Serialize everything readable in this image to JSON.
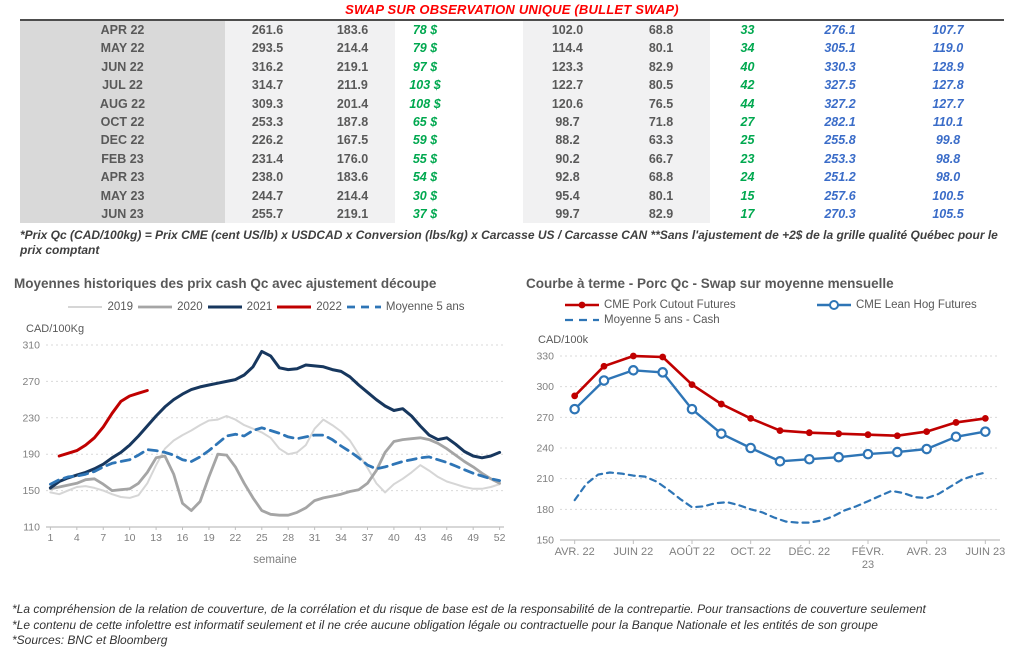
{
  "title": "SWAP SUR OBSERVATION UNIQUE (BULLET SWAP)",
  "table": {
    "rows": [
      [
        "APR 22",
        "261.6",
        "183.6",
        "78 $",
        "102.0",
        "68.8",
        "33",
        "276.1",
        "107.7"
      ],
      [
        "MAY 22",
        "293.5",
        "214.4",
        "79 $",
        "114.4",
        "80.1",
        "34",
        "305.1",
        "119.0"
      ],
      [
        "JUN 22",
        "316.2",
        "219.1",
        "97 $",
        "123.3",
        "82.9",
        "40",
        "330.3",
        "128.9"
      ],
      [
        "JUL 22",
        "314.7",
        "211.9",
        "103 $",
        "122.7",
        "80.5",
        "42",
        "327.5",
        "127.8"
      ],
      [
        "AUG 22",
        "309.3",
        "201.4",
        "108 $",
        "120.6",
        "76.5",
        "44",
        "327.2",
        "127.7"
      ],
      [
        "OCT 22",
        "253.3",
        "187.8",
        "65 $",
        "98.7",
        "71.8",
        "27",
        "282.1",
        "110.1"
      ],
      [
        "DEC 22",
        "226.2",
        "167.5",
        "59 $",
        "88.2",
        "63.3",
        "25",
        "255.8",
        "99.8"
      ],
      [
        "FEB 23",
        "231.4",
        "176.0",
        "55 $",
        "90.2",
        "66.7",
        "23",
        "253.3",
        "98.8"
      ],
      [
        "APR 23",
        "238.0",
        "183.6",
        "54 $",
        "92.8",
        "68.8",
        "24",
        "251.2",
        "98.0"
      ],
      [
        "MAY 23",
        "244.7",
        "214.4",
        "30 $",
        "95.4",
        "80.1",
        "15",
        "257.6",
        "100.5"
      ],
      [
        "JUN 23",
        "255.7",
        "219.1",
        "37 $",
        "99.7",
        "82.9",
        "17",
        "270.3",
        "105.5"
      ]
    ]
  },
  "table_note": "*Prix Qc (CAD/100kg) = Prix CME (cent US/lb) x USDCAD x Conversion (lbs/kg) x Carcasse US / Carcasse CAN **Sans l'ajustement de +2$ de la grille qualité Québec pour le prix comptant",
  "colors": {
    "title_red": "#fe0000",
    "green": "#00a84f",
    "table_blue": "#3a6cc8",
    "navy": "#17375e",
    "dark_red": "#c00000",
    "gray_2020": "#a5a5a5",
    "light_gray_2019": "#d6d6d6",
    "chart_blue": "#2e75b6"
  },
  "chart_data": [
    {
      "type": "line",
      "title": "Moyennes historiques des prix cash Qc avec ajustement découpe",
      "ylabel": "CAD/100Kg",
      "xlabel": "semaine",
      "ylim": [
        110,
        310
      ],
      "yticks": [
        110,
        150,
        190,
        230,
        270,
        310
      ],
      "xticks": [
        1,
        4,
        7,
        10,
        13,
        16,
        19,
        22,
        25,
        28,
        31,
        34,
        37,
        40,
        43,
        46,
        49,
        52
      ],
      "xrange": [
        1,
        52
      ],
      "grid": true,
      "legend_position": "top",
      "series": [
        {
          "name": "2019",
          "color": "#d6d6d6",
          "style": "solid",
          "width": 2,
          "values": [
            148,
            146,
            150,
            154,
            155,
            153,
            150,
            146,
            143,
            142,
            145,
            158,
            178,
            196,
            205,
            211,
            216,
            222,
            227,
            228,
            232,
            228,
            222,
            218,
            214,
            208,
            196,
            190,
            192,
            200,
            218,
            228,
            222,
            215,
            205,
            190,
            175,
            158,
            148,
            157,
            163,
            170,
            178,
            172,
            165,
            160,
            157,
            154,
            152,
            152,
            154,
            157
          ]
        },
        {
          "name": "2020",
          "color": "#a5a5a5",
          "style": "solid",
          "width": 2.8,
          "values": [
            152,
            154,
            156,
            158,
            162,
            163,
            157,
            150,
            151,
            152,
            158,
            170,
            186,
            188,
            168,
            136,
            128,
            138,
            165,
            190,
            189,
            176,
            158,
            142,
            128,
            124,
            123,
            123,
            126,
            131,
            139,
            142,
            144,
            146,
            149,
            151,
            158,
            172,
            192,
            204,
            206,
            207,
            208,
            206,
            202,
            196,
            189,
            182,
            176,
            169,
            163,
            158
          ]
        },
        {
          "name": "2021",
          "color": "#17375e",
          "style": "solid",
          "width": 3,
          "values": [
            153,
            160,
            164,
            167,
            170,
            174,
            179,
            186,
            192,
            200,
            210,
            221,
            232,
            242,
            250,
            256,
            261,
            264,
            266,
            268,
            270,
            272,
            277,
            286,
            303,
            298,
            285,
            283,
            284,
            288,
            287,
            286,
            283,
            281,
            275,
            266,
            258,
            250,
            243,
            238,
            240,
            232,
            221,
            211,
            206,
            208,
            201,
            193,
            188,
            186,
            188,
            192
          ]
        },
        {
          "name": "2022",
          "color": "#c00000",
          "style": "solid",
          "width": 3,
          "x": [
            2,
            3,
            4,
            5,
            6,
            7,
            8,
            9,
            10,
            11,
            12
          ],
          "values": [
            188,
            191,
            194,
            200,
            208,
            220,
            235,
            248,
            254,
            257,
            260
          ]
        },
        {
          "name": "Moyenne 5 ans",
          "color": "#2e75b6",
          "style": "dashed",
          "width": 2.8,
          "dash": "9 6",
          "values": [
            157,
            162,
            165,
            166,
            168,
            171,
            176,
            180,
            182,
            184,
            189,
            195,
            194,
            192,
            189,
            184,
            182,
            187,
            194,
            202,
            210,
            212,
            210,
            216,
            219,
            216,
            213,
            209,
            207,
            209,
            211,
            211,
            206,
            199,
            193,
            186,
            178,
            174,
            176,
            179,
            182,
            184,
            186,
            187,
            184,
            181,
            177,
            173,
            169,
            166,
            163,
            161
          ]
        }
      ]
    },
    {
      "type": "line",
      "title": "Courbe à terme - Porc Qc - Swap sur moyenne mensuelle",
      "ylabel": "CAD/100k",
      "ylim": [
        150,
        330
      ],
      "yticks": [
        150,
        180,
        210,
        240,
        270,
        300,
        330
      ],
      "x_labels": [
        [
          "AVR. 22"
        ],
        [
          "JUIN 22"
        ],
        [
          "AOÛT 22"
        ],
        [
          "OCT. 22"
        ],
        [
          "DÉC. 22"
        ],
        [
          "FÉVR.",
          "23"
        ],
        [
          "AVR. 23"
        ],
        [
          "JUIN 23"
        ]
      ],
      "xtick_step": 2,
      "grid": true,
      "legend_position": "top",
      "series": [
        {
          "name": "CME Pork Cutout Futures",
          "color": "#c00000",
          "style": "solid",
          "width": 2.6,
          "marker": "filled",
          "values": [
            291,
            320,
            330,
            329,
            302,
            283,
            269,
            257,
            255,
            254,
            253,
            252,
            256,
            265,
            269
          ]
        },
        {
          "name": "CME Lean Hog Futures",
          "color": "#2e75b6",
          "style": "solid",
          "width": 2.4,
          "marker": "open",
          "values": [
            278,
            306,
            316,
            314,
            278,
            254,
            240,
            227,
            229,
            231,
            234,
            236,
            239,
            251,
            256
          ]
        },
        {
          "name": "Moyenne 5 ans - Cash",
          "color": "#2e75b6",
          "style": "dashed",
          "width": 2.2,
          "dash": "6 5",
          "xstep": 0.4,
          "values": [
            189,
            205,
            214,
            216,
            215,
            213,
            212,
            207,
            199,
            190,
            182,
            183,
            186,
            187,
            184,
            180,
            177,
            172,
            168,
            167,
            167,
            169,
            173,
            179,
            183,
            188,
            193,
            198,
            196,
            192,
            191,
            195,
            202,
            209,
            213,
            216
          ]
        }
      ]
    }
  ],
  "footer": {
    "lines": [
      "*La compréhension de la relation de couverture, de la corrélation et du risque de base est de la responsabilité de la contrepartie. Pour transactions de couverture seulement",
      "*Le contenu de cette infolettre est informatif seulement et il ne crée aucune obligation légale ou contractuelle pour la Banque Nationale et les entités de son groupe",
      "*Sources: BNC et Bloomberg"
    ]
  }
}
